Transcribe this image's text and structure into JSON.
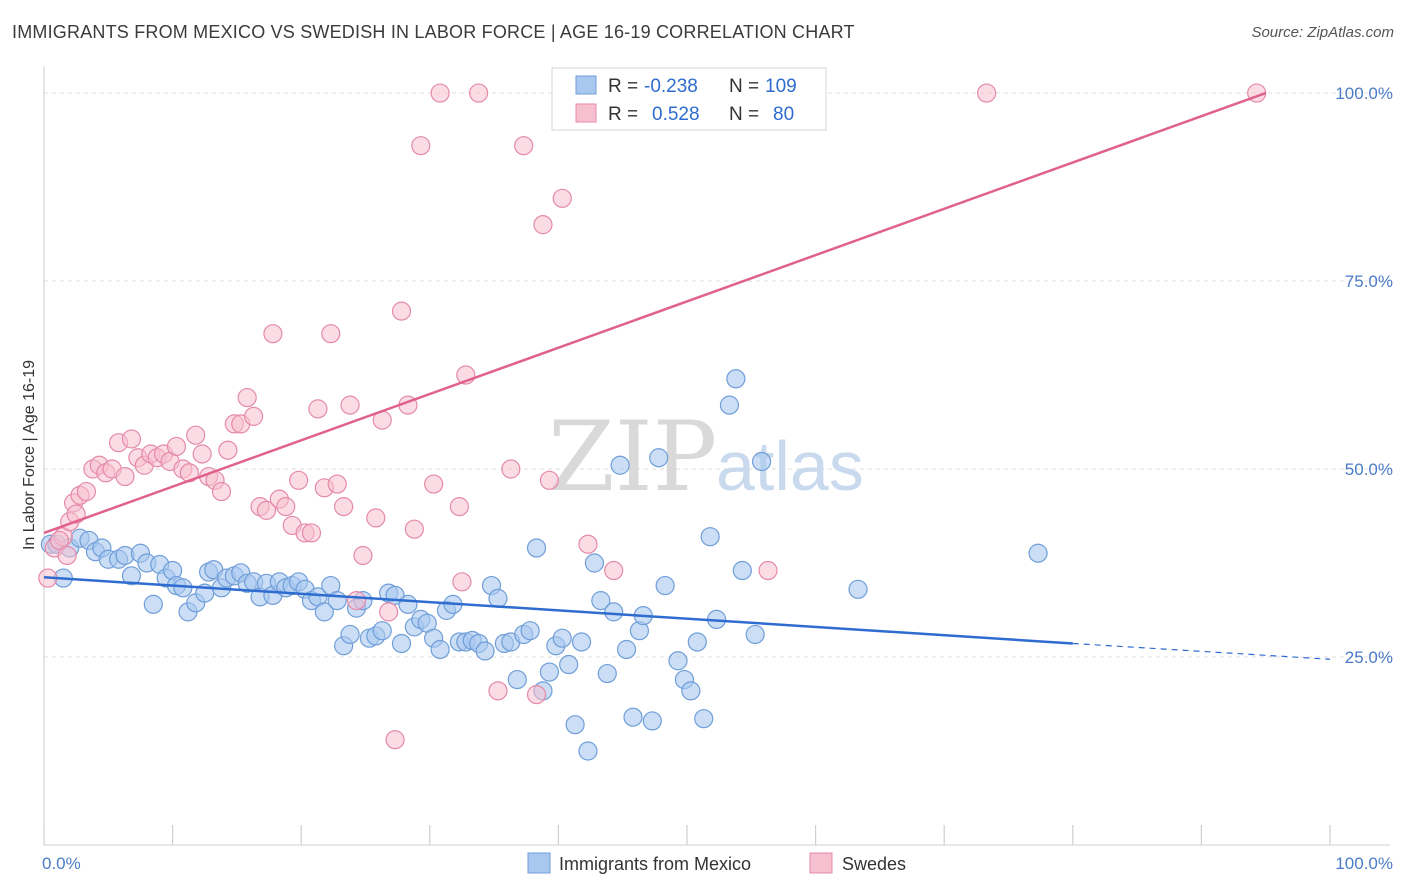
{
  "header": {
    "title": "IMMIGRANTS FROM MEXICO VS SWEDISH IN LABOR FORCE | AGE 16-19 CORRELATION CHART",
    "source": "Source: ZipAtlas.com"
  },
  "watermark": {
    "zip": "ZIP",
    "atlas": "atlas"
  },
  "legend": {
    "r_label": "R =",
    "n_label": "N =",
    "series1": {
      "r": "-0.238",
      "n": "109"
    },
    "series2": {
      "r": "0.528",
      "n": "80"
    }
  },
  "colors": {
    "blue_fill": "#a8c8f0",
    "blue_stroke": "#6f9ed8",
    "blue_line": "#2f6ccf",
    "pink_fill": "#f7c0d0",
    "pink_stroke": "#e48aa8",
    "pink_line": "#e0628c"
  },
  "chart_data": {
    "type": "scatter",
    "title": "IMMIGRANTS FROM MEXICO VS SWEDISH IN LABOR FORCE | AGE 16-19 CORRELATION CHART",
    "xlabel": "",
    "ylabel": "In Labor Force | Age 16-19",
    "xlim": [
      0,
      100
    ],
    "ylim": [
      0,
      102
    ],
    "x_tick_labels": [
      "0.0%",
      "100.0%"
    ],
    "y_ticks": [
      25,
      50,
      75,
      100
    ],
    "y_tick_labels": [
      "25.0%",
      "50.0%",
      "75.0%",
      "100.0%"
    ],
    "grid": true,
    "legend_position": "top-center",
    "series": [
      {
        "name": "Immigrants from Mexico",
        "r": -0.238,
        "n": 109,
        "trend": {
          "x0": 0,
          "y0": 35.6,
          "x1": 80,
          "y1": 26.8,
          "dashed_to_x": 100,
          "dashed_to_y": 24.7
        },
        "points": [
          [
            0.5,
            40
          ],
          [
            1,
            40
          ],
          [
            1.5,
            35.5
          ],
          [
            2,
            39.5
          ],
          [
            2.8,
            40.8
          ],
          [
            3.5,
            40.5
          ],
          [
            4,
            39
          ],
          [
            4.5,
            39.5
          ],
          [
            5,
            38
          ],
          [
            5.8,
            38
          ],
          [
            6.3,
            38.5
          ],
          [
            6.8,
            35.8
          ],
          [
            7.5,
            38.8
          ],
          [
            8,
            37.5
          ],
          [
            8.5,
            32
          ],
          [
            9,
            37.3
          ],
          [
            9.5,
            35.5
          ],
          [
            10,
            36.5
          ],
          [
            10.3,
            34.5
          ],
          [
            10.8,
            34.2
          ],
          [
            11.2,
            31
          ],
          [
            11.8,
            32.2
          ],
          [
            12.5,
            33.5
          ],
          [
            12.8,
            36.3
          ],
          [
            13.2,
            36.6
          ],
          [
            13.8,
            34.2
          ],
          [
            14.2,
            35.5
          ],
          [
            14.8,
            35.8
          ],
          [
            15.3,
            36.2
          ],
          [
            15.8,
            34.8
          ],
          [
            16.3,
            35
          ],
          [
            16.8,
            33
          ],
          [
            17.3,
            34.8
          ],
          [
            17.8,
            33.2
          ],
          [
            18.3,
            35
          ],
          [
            18.8,
            34.2
          ],
          [
            19.3,
            34.5
          ],
          [
            19.8,
            35
          ],
          [
            20.3,
            34
          ],
          [
            20.8,
            32.5
          ],
          [
            21.3,
            33
          ],
          [
            21.8,
            31
          ],
          [
            22.3,
            34.5
          ],
          [
            22.8,
            32.5
          ],
          [
            23.3,
            26.5
          ],
          [
            23.8,
            28
          ],
          [
            24.3,
            31.5
          ],
          [
            24.8,
            32.5
          ],
          [
            25.3,
            27.5
          ],
          [
            25.8,
            27.8
          ],
          [
            26.3,
            28.5
          ],
          [
            26.8,
            33.5
          ],
          [
            27.3,
            33.2
          ],
          [
            27.8,
            26.8
          ],
          [
            28.3,
            32
          ],
          [
            28.8,
            29
          ],
          [
            29.3,
            30
          ],
          [
            29.8,
            29.5
          ],
          [
            30.3,
            27.5
          ],
          [
            30.8,
            26
          ],
          [
            31.3,
            31.2
          ],
          [
            31.8,
            32
          ],
          [
            32.3,
            27
          ],
          [
            32.8,
            27
          ],
          [
            33.3,
            27.2
          ],
          [
            33.8,
            26.8
          ],
          [
            34.3,
            25.8
          ],
          [
            34.8,
            34.5
          ],
          [
            35.3,
            32.8
          ],
          [
            35.8,
            26.8
          ],
          [
            36.3,
            27
          ],
          [
            36.8,
            22
          ],
          [
            37.3,
            28
          ],
          [
            37.8,
            28.5
          ],
          [
            38.3,
            39.5
          ],
          [
            38.8,
            20.5
          ],
          [
            39.3,
            23
          ],
          [
            39.8,
            26.5
          ],
          [
            40.3,
            27.5
          ],
          [
            40.8,
            24
          ],
          [
            41.3,
            16
          ],
          [
            41.8,
            27
          ],
          [
            42.3,
            12.5
          ],
          [
            42.8,
            37.5
          ],
          [
            43.3,
            32.5
          ],
          [
            43.8,
            22.8
          ],
          [
            44.3,
            31
          ],
          [
            44.8,
            50.5
          ],
          [
            45.3,
            26
          ],
          [
            45.8,
            17
          ],
          [
            46.3,
            28.5
          ],
          [
            46.6,
            30.5
          ],
          [
            47.3,
            16.5
          ],
          [
            47.8,
            51.5
          ],
          [
            48.3,
            34.5
          ],
          [
            49.3,
            24.5
          ],
          [
            49.8,
            22
          ],
          [
            50.3,
            20.5
          ],
          [
            50.8,
            27
          ],
          [
            51.3,
            16.8
          ],
          [
            51.8,
            41
          ],
          [
            52.3,
            30
          ],
          [
            53.3,
            58.5
          ],
          [
            53.8,
            62
          ],
          [
            54.3,
            36.5
          ],
          [
            55.8,
            51
          ],
          [
            55.3,
            28
          ],
          [
            63.3,
            34
          ],
          [
            77.3,
            38.8
          ]
        ]
      },
      {
        "name": "Swedes",
        "r": 0.528,
        "n": 80,
        "trend": {
          "x0": 0,
          "y0": 41.5,
          "x1": 95,
          "y1": 100
        },
        "points": [
          [
            0.3,
            35.5
          ],
          [
            0.8,
            39.5
          ],
          [
            1.5,
            41
          ],
          [
            2,
            43
          ],
          [
            2.3,
            45.5
          ],
          [
            2.8,
            46.5
          ],
          [
            3.3,
            47
          ],
          [
            3.8,
            50
          ],
          [
            4.3,
            50.5
          ],
          [
            4.8,
            49.5
          ],
          [
            5.3,
            50
          ],
          [
            5.8,
            53.5
          ],
          [
            6.3,
            49
          ],
          [
            6.8,
            54
          ],
          [
            7.3,
            51.5
          ],
          [
            7.8,
            50.5
          ],
          [
            8.3,
            52
          ],
          [
            8.8,
            51.5
          ],
          [
            9.3,
            52
          ],
          [
            9.8,
            51
          ],
          [
            10.3,
            53
          ],
          [
            10.8,
            50
          ],
          [
            11.3,
            49.5
          ],
          [
            11.8,
            54.5
          ],
          [
            12.3,
            52
          ],
          [
            12.8,
            49
          ],
          [
            13.3,
            48.5
          ],
          [
            13.8,
            47
          ],
          [
            14.3,
            52.5
          ],
          [
            14.8,
            56
          ],
          [
            15.3,
            56
          ],
          [
            15.8,
            59.5
          ],
          [
            16.3,
            57
          ],
          [
            16.8,
            45
          ],
          [
            17.3,
            44.5
          ],
          [
            17.8,
            68
          ],
          [
            18.3,
            46
          ],
          [
            18.8,
            45
          ],
          [
            19.3,
            42.5
          ],
          [
            19.8,
            48.5
          ],
          [
            20.3,
            41.5
          ],
          [
            20.8,
            41.5
          ],
          [
            21.3,
            58
          ],
          [
            21.8,
            47.5
          ],
          [
            22.3,
            68
          ],
          [
            22.8,
            48
          ],
          [
            23.3,
            45
          ],
          [
            23.8,
            58.5
          ],
          [
            24.3,
            32.5
          ],
          [
            24.8,
            38.5
          ],
          [
            25.8,
            43.5
          ],
          [
            26.3,
            56.5
          ],
          [
            26.8,
            31
          ],
          [
            27.3,
            14
          ],
          [
            27.8,
            71
          ],
          [
            28.3,
            58.5
          ],
          [
            28.8,
            42
          ],
          [
            29.3,
            93
          ],
          [
            30.3,
            48
          ],
          [
            30.8,
            100
          ],
          [
            32.3,
            45
          ],
          [
            32.8,
            62.5
          ],
          [
            32.5,
            35
          ],
          [
            33.8,
            100
          ],
          [
            35.3,
            20.5
          ],
          [
            36.3,
            50
          ],
          [
            37.3,
            93
          ],
          [
            38.3,
            20
          ],
          [
            38.8,
            82.5
          ],
          [
            39.3,
            48.5
          ],
          [
            40.3,
            86
          ],
          [
            42.3,
            40
          ],
          [
            44.3,
            36.5
          ],
          [
            46.3,
            100
          ],
          [
            56.3,
            36.5
          ],
          [
            73.3,
            100
          ],
          [
            94.3,
            100
          ],
          [
            1.2,
            40.5
          ],
          [
            1.8,
            38.5
          ],
          [
            2.5,
            44
          ]
        ]
      }
    ]
  },
  "bottom_legend": {
    "item1": "Immigrants from Mexico",
    "item2": "Swedes"
  }
}
